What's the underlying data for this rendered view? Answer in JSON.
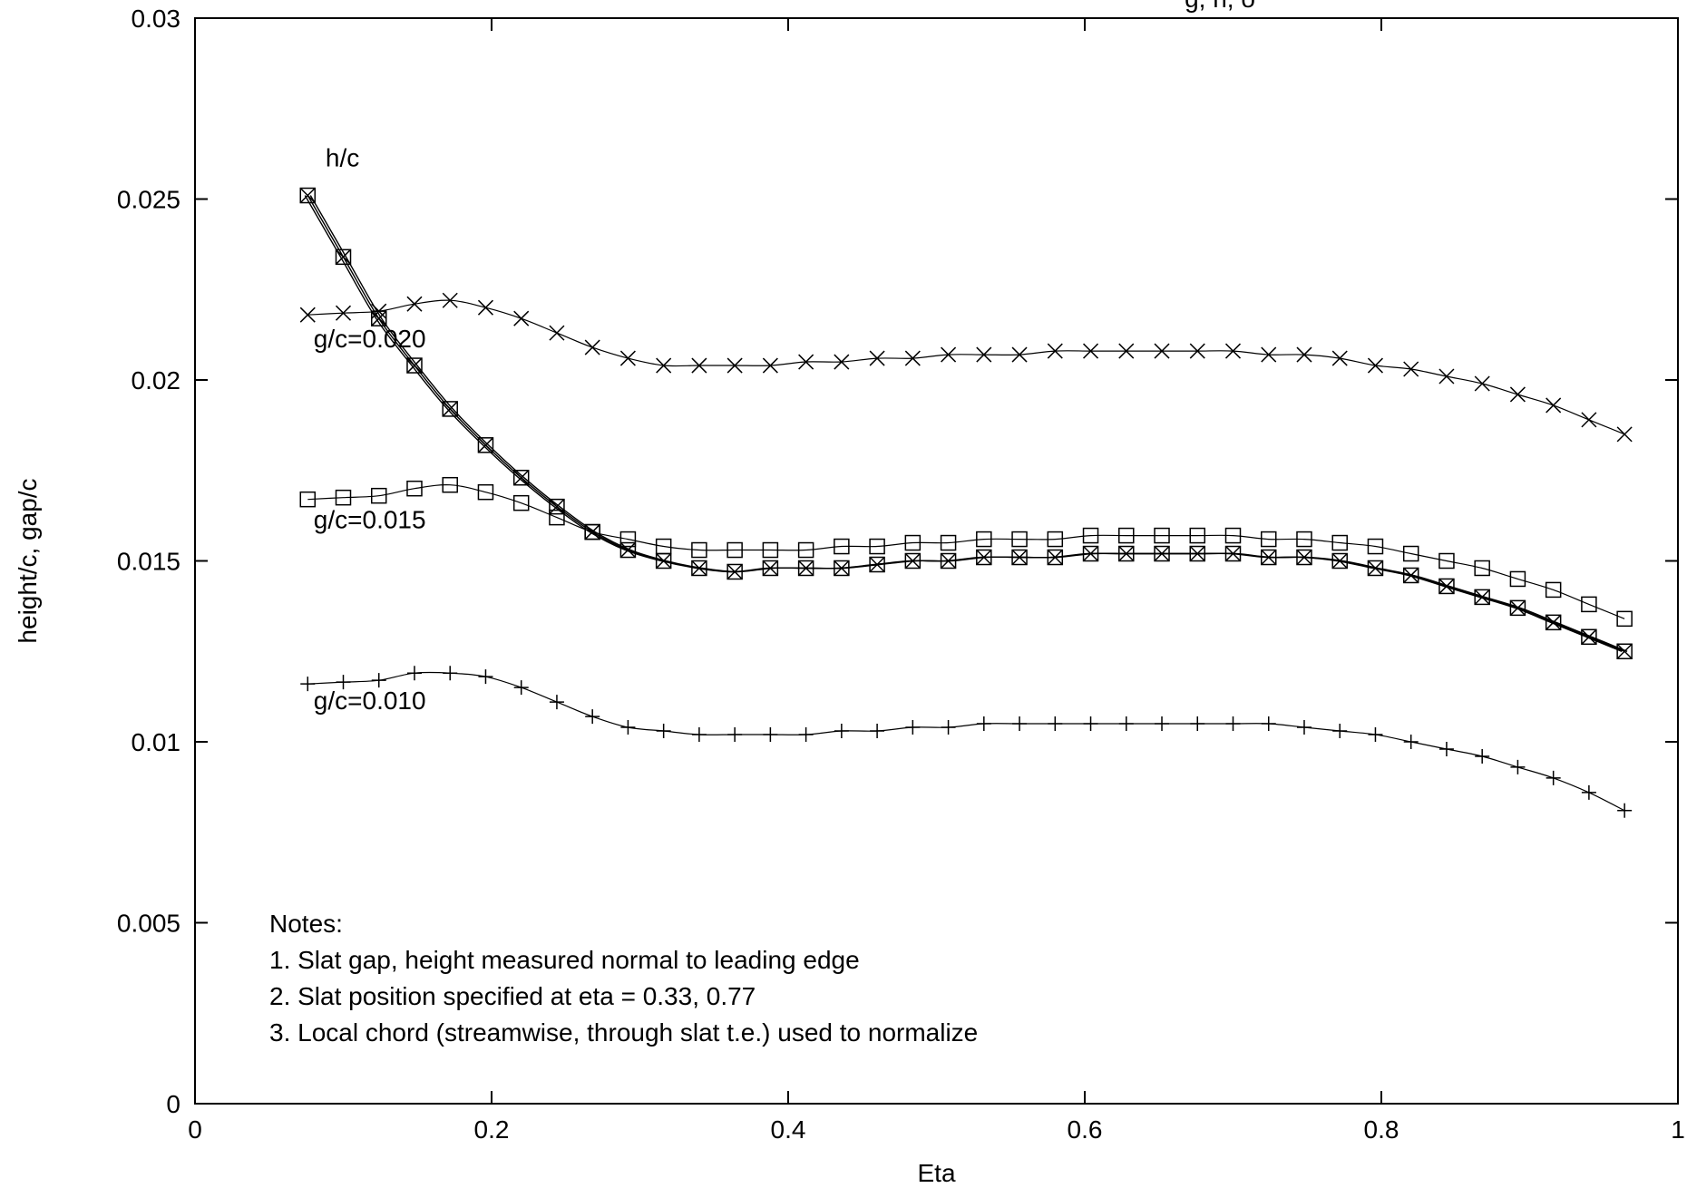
{
  "chart_data": {
    "type": "line",
    "title": "g, h, o",
    "xlabel": "Eta",
    "ylabel": "height/c, gap/c",
    "xlim": [
      0,
      1
    ],
    "ylim": [
      0,
      0.03
    ],
    "x_ticks": [
      0,
      0.2,
      0.4,
      0.6,
      0.8,
      1
    ],
    "x_tick_labels": [
      "0",
      "0.2",
      "0.4",
      "0.6",
      "0.8",
      "1"
    ],
    "y_ticks": [
      0,
      0.005,
      0.01,
      0.015,
      0.02,
      0.025,
      0.03
    ],
    "y_tick_labels": [
      "0",
      "0.005",
      "0.01",
      "0.015",
      "0.02",
      "0.025",
      "0.03"
    ],
    "grid": false,
    "legend": "none",
    "x": [
      0.076,
      0.1,
      0.124,
      0.148,
      0.172,
      0.196,
      0.22,
      0.244,
      0.268,
      0.292,
      0.316,
      0.34,
      0.364,
      0.388,
      0.412,
      0.436,
      0.46,
      0.484,
      0.508,
      0.532,
      0.556,
      0.58,
      0.604,
      0.628,
      0.652,
      0.676,
      0.7,
      0.724,
      0.748,
      0.772,
      0.796,
      0.82,
      0.844,
      0.868,
      0.892,
      0.916,
      0.94,
      0.964
    ],
    "series": [
      {
        "marker": "x",
        "values": [
          0.0218,
          0.02185,
          0.0219,
          0.0221,
          0.0222,
          0.022,
          0.0217,
          0.0213,
          0.0209,
          0.0206,
          0.0204,
          0.0204,
          0.0204,
          0.0204,
          0.0205,
          0.0205,
          0.0206,
          0.0206,
          0.0207,
          0.0207,
          0.0207,
          0.0208,
          0.0208,
          0.0208,
          0.0208,
          0.0208,
          0.0208,
          0.0207,
          0.0207,
          0.0206,
          0.0204,
          0.0203,
          0.0201,
          0.0199,
          0.0196,
          0.0193,
          0.0189,
          0.0185
        ]
      },
      {
        "marker": "square",
        "values": [
          0.0167,
          0.01675,
          0.0168,
          0.017,
          0.0171,
          0.0169,
          0.0166,
          0.0162,
          0.0158,
          0.0156,
          0.0154,
          0.0153,
          0.0153,
          0.0153,
          0.0153,
          0.0154,
          0.0154,
          0.0155,
          0.0155,
          0.0156,
          0.0156,
          0.0156,
          0.0157,
          0.0157,
          0.0157,
          0.0157,
          0.0157,
          0.0156,
          0.0156,
          0.0155,
          0.0154,
          0.0152,
          0.015,
          0.0148,
          0.0145,
          0.0142,
          0.0138,
          0.0134
        ]
      },
      {
        "marker": "plus",
        "values": [
          0.0116,
          0.01165,
          0.0117,
          0.0119,
          0.0119,
          0.0118,
          0.0115,
          0.0111,
          0.0107,
          0.0104,
          0.0103,
          0.0102,
          0.0102,
          0.0102,
          0.0102,
          0.0103,
          0.0103,
          0.0104,
          0.0104,
          0.0105,
          0.0105,
          0.0105,
          0.0105,
          0.0105,
          0.0105,
          0.0105,
          0.0105,
          0.0105,
          0.0104,
          0.0103,
          0.0102,
          0.01,
          0.0098,
          0.0096,
          0.0093,
          0.009,
          0.0086,
          0.0081
        ]
      },
      {
        "marker": "box-x",
        "values": [
          0.0251,
          0.0234,
          0.0217,
          0.0204,
          0.0192,
          0.0182,
          0.0173,
          0.0165,
          0.0158,
          0.0153,
          0.015,
          0.0148,
          0.0147,
          0.0148,
          0.0148,
          0.0148,
          0.0149,
          0.015,
          0.015,
          0.0151,
          0.0151,
          0.0151,
          0.0152,
          0.0152,
          0.0152,
          0.0152,
          0.0152,
          0.0151,
          0.0151,
          0.015,
          0.0148,
          0.0146,
          0.0143,
          0.014,
          0.0137,
          0.0133,
          0.0129,
          0.0125
        ]
      }
    ],
    "annotations": [
      {
        "text": "h/c",
        "x": 0.088,
        "y": 0.0259
      },
      {
        "text": "g/c=0.020",
        "x": 0.08,
        "y": 0.0209
      },
      {
        "text": "g/c=0.015",
        "x": 0.08,
        "y": 0.0159
      },
      {
        "text": "g/c=0.010",
        "x": 0.08,
        "y": 0.0109
      }
    ],
    "notes": [
      "Notes:",
      "1. Slat gap, height measured normal to leading edge",
      "2. Slat position specified at eta = 0.33, 0.77",
      "3. Local chord (streamwise, through slat t.e.) used to normalize"
    ]
  }
}
